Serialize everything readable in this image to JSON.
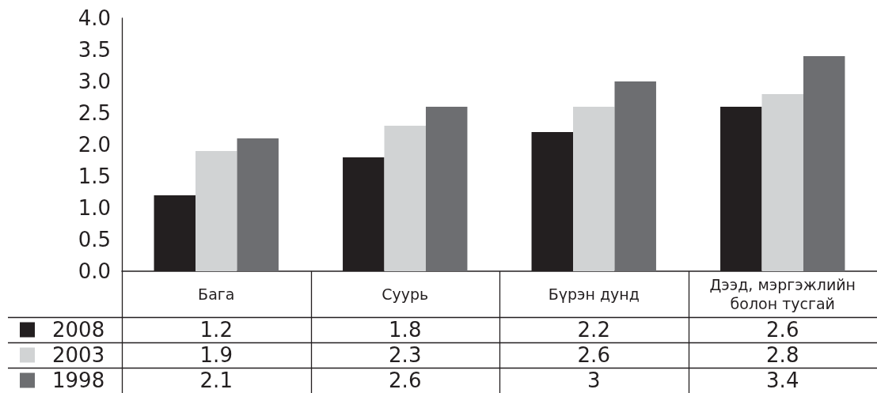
{
  "chart_data": {
    "type": "bar",
    "categories": [
      "Бага",
      "Суурь",
      "Бүрэн дунд",
      "Дээд, мэргэжлийн болон тусгай"
    ],
    "series": [
      {
        "name": "2008",
        "color": "#231f20",
        "values": [
          1.2,
          1.8,
          2.2,
          2.6
        ]
      },
      {
        "name": "2003",
        "color": "#d1d3d4",
        "values": [
          1.9,
          2.3,
          2.6,
          2.8
        ]
      },
      {
        "name": "1998",
        "color": "#6d6e71",
        "values": [
          2.1,
          2.6,
          3,
          3.4
        ]
      }
    ],
    "ylim": [
      0,
      4
    ],
    "yticks": [
      {
        "value": 0,
        "label": "0.0"
      },
      0.5,
      {
        "value": 1,
        "label": "1.0"
      },
      1.5,
      {
        "value": 2,
        "label": "2.0"
      },
      2.5,
      {
        "value": 3,
        "label": "3.0"
      },
      3.5,
      {
        "value": 4,
        "label": "4.0"
      }
    ],
    "grid": false,
    "legend": "bottom left",
    "data_labels": true
  }
}
